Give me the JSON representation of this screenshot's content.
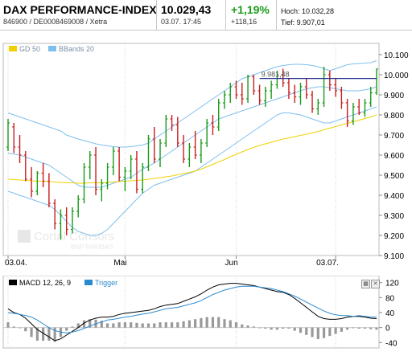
{
  "header": {
    "title": "DAX PERFORMANCE-INDEX",
    "subtitle": "846900 / DE0008469008 / Xetra",
    "last": "10.029,43",
    "datetime": "03.07. 17:45",
    "change_pct": "+1,19%",
    "change_abs": "+118,16",
    "high": "Hoch: 10.032,28",
    "low": "Tief: 9.907,01",
    "up_color": "#1a9a1a"
  },
  "watermark": {
    "line1": "Cortal Consors",
    "line2": "BNP PARIBAS"
  },
  "chart_data": [
    {
      "type": "ohlc",
      "legend": [
        {
          "label": "GD 50",
          "color": "#f2d000"
        },
        {
          "label": "BBands 20",
          "color": "#7fbfee"
        }
      ],
      "x_tick_labels": [
        "03.04.",
        "Mai",
        "Jun",
        "03.07."
      ],
      "x_tick_index": [
        0,
        20,
        39,
        56
      ],
      "y_tick_labels": [
        "10.100",
        "10.000",
        "9.900",
        "9.800",
        "9.700",
        "9.600",
        "9.500",
        "9.400",
        "9.300",
        "9.200",
        "9.100"
      ],
      "y_ticks": [
        10100,
        10000,
        9900,
        9800,
        9700,
        9600,
        9500,
        9400,
        9300,
        9200,
        9100
      ],
      "ylim": [
        9100,
        10100
      ],
      "reference_line": {
        "value": 9981.48,
        "label": "9.981,48",
        "color": "#1a2e8c"
      },
      "up_color": "#1a9a1a",
      "down_color": "#c81e1e",
      "candles": [
        [
          9640,
          9780,
          9620,
          9760
        ],
        [
          9740,
          9760,
          9610,
          9640
        ],
        [
          9640,
          9700,
          9560,
          9600
        ],
        [
          9600,
          9620,
          9470,
          9480
        ],
        [
          9480,
          9540,
          9390,
          9420
        ],
        [
          9420,
          9520,
          9400,
          9510
        ],
        [
          9510,
          9560,
          9440,
          9470
        ],
        [
          9470,
          9510,
          9340,
          9360
        ],
        [
          9360,
          9380,
          9230,
          9260
        ],
        [
          9260,
          9330,
          9180,
          9300
        ],
        [
          9300,
          9340,
          9200,
          9230
        ],
        [
          9230,
          9340,
          9210,
          9320
        ],
        [
          9320,
          9400,
          9290,
          9380
        ],
        [
          9380,
          9560,
          9360,
          9540
        ],
        [
          9540,
          9620,
          9480,
          9600
        ],
        [
          9600,
          9640,
          9400,
          9430
        ],
        [
          9430,
          9480,
          9370,
          9460
        ],
        [
          9460,
          9560,
          9430,
          9540
        ],
        [
          9540,
          9640,
          9500,
          9620
        ],
        [
          9620,
          9640,
          9470,
          9490
        ],
        [
          9490,
          9540,
          9420,
          9520
        ],
        [
          9520,
          9600,
          9480,
          9580
        ],
        [
          9580,
          9620,
          9410,
          9430
        ],
        [
          9430,
          9560,
          9410,
          9540
        ],
        [
          9540,
          9700,
          9520,
          9680
        ],
        [
          9680,
          9740,
          9560,
          9580
        ],
        [
          9580,
          9680,
          9540,
          9660
        ],
        [
          9660,
          9800,
          9640,
          9780
        ],
        [
          9780,
          9800,
          9720,
          9750
        ],
        [
          9750,
          9790,
          9640,
          9660
        ],
        [
          9660,
          9700,
          9560,
          9580
        ],
        [
          9580,
          9660,
          9540,
          9640
        ],
        [
          9640,
          9720,
          9580,
          9600
        ],
        [
          9600,
          9680,
          9560,
          9660
        ],
        [
          9660,
          9780,
          9640,
          9760
        ],
        [
          9760,
          9800,
          9700,
          9740
        ],
        [
          9740,
          9880,
          9720,
          9860
        ],
        [
          9860,
          9920,
          9830,
          9900
        ],
        [
          9900,
          9960,
          9860,
          9940
        ],
        [
          9940,
          9970,
          9880,
          9900
        ],
        [
          9900,
          9960,
          9850,
          9880
        ],
        [
          9880,
          10000,
          9860,
          9990
        ],
        [
          9990,
          10000,
          9900,
          9920
        ],
        [
          9920,
          9950,
          9850,
          9870
        ],
        [
          9870,
          9940,
          9840,
          9920
        ],
        [
          9920,
          9970,
          9880,
          9950
        ],
        [
          9950,
          10020,
          9930,
          10000
        ],
        [
          10000,
          10030,
          9940,
          9960
        ],
        [
          9960,
          9980,
          9880,
          9910
        ],
        [
          9910,
          9950,
          9860,
          9890
        ],
        [
          9890,
          9960,
          9850,
          9940
        ],
        [
          9940,
          9980,
          9880,
          9900
        ],
        [
          9900,
          9920,
          9810,
          9830
        ],
        [
          9830,
          9880,
          9800,
          9860
        ],
        [
          9860,
          10040,
          9840,
          10000
        ],
        [
          10000,
          10020,
          9920,
          9950
        ],
        [
          9950,
          9980,
          9890,
          9920
        ],
        [
          9920,
          9940,
          9830,
          9860
        ],
        [
          9860,
          9880,
          9740,
          9770
        ],
        [
          9770,
          9860,
          9750,
          9840
        ],
        [
          9840,
          9880,
          9800,
          9810
        ],
        [
          9810,
          9880,
          9790,
          9860
        ],
        [
          9860,
          9940,
          9840,
          9910
        ],
        [
          9910,
          10030,
          9900,
          10029
        ]
      ],
      "gd50": [
        9480,
        9478,
        9476,
        9474,
        9472,
        9470,
        9470,
        9468,
        9466,
        9464,
        9462,
        9462,
        9460,
        9460,
        9462,
        9462,
        9462,
        9464,
        9466,
        9468,
        9470,
        9472,
        9474,
        9476,
        9480,
        9484,
        9488,
        9492,
        9496,
        9502,
        9508,
        9514,
        9520,
        9530,
        9542,
        9554,
        9566,
        9578,
        9592,
        9604,
        9616,
        9628,
        9638,
        9648,
        9656,
        9664,
        9672,
        9680,
        9686,
        9692,
        9698,
        9704,
        9710,
        9718,
        9726,
        9734,
        9742,
        9750,
        9758,
        9766,
        9774,
        9782,
        9790,
        9800
      ],
      "bb_upper": [
        9810,
        9800,
        9790,
        9780,
        9770,
        9760,
        9750,
        9740,
        9730,
        9720,
        9700,
        9690,
        9680,
        9672,
        9664,
        9656,
        9650,
        9646,
        9642,
        9640,
        9640,
        9642,
        9646,
        9650,
        9660,
        9680,
        9700,
        9720,
        9740,
        9760,
        9780,
        9800,
        9820,
        9840,
        9860,
        9880,
        9900,
        9920,
        9940,
        9960,
        9980,
        9990,
        10000,
        10010,
        10020,
        10030,
        10040,
        10046,
        10050,
        10052,
        10052,
        10050,
        10046,
        10040,
        10030,
        10020,
        10030,
        10040,
        10050,
        10054,
        10056,
        10058,
        10060,
        10070
      ],
      "bb_lower": [
        9420,
        9410,
        9400,
        9390,
        9380,
        9370,
        9360,
        9350,
        9330,
        9300,
        9270,
        9240,
        9220,
        9210,
        9200,
        9200,
        9210,
        9230,
        9260,
        9290,
        9320,
        9350,
        9380,
        9410,
        9430,
        9450,
        9460,
        9470,
        9480,
        9490,
        9500,
        9510,
        9520,
        9540,
        9560,
        9580,
        9600,
        9620,
        9640,
        9660,
        9680,
        9700,
        9720,
        9740,
        9760,
        9780,
        9800,
        9810,
        9810,
        9805,
        9800,
        9790,
        9780,
        9770,
        9760,
        9760,
        9770,
        9780,
        9790,
        9800,
        9810,
        9820,
        9830,
        9840
      ],
      "bb_mid": [
        9610,
        9605,
        9600,
        9590,
        9580,
        9570,
        9560,
        9550,
        9530,
        9510,
        9490,
        9470,
        9450,
        9440,
        9440,
        9440,
        9440,
        9450,
        9460,
        9470,
        9480,
        9490,
        9510,
        9530,
        9545,
        9560,
        9580,
        9600,
        9620,
        9640,
        9660,
        9680,
        9700,
        9720,
        9740,
        9760,
        9780,
        9790,
        9800,
        9810,
        9820,
        9830,
        9840,
        9850,
        9860,
        9870,
        9880,
        9890,
        9900,
        9910,
        9920,
        9930,
        9935,
        9940,
        9940,
        9935,
        9930,
        9925,
        9920,
        9920,
        9920,
        9925,
        9930,
        9940
      ]
    },
    {
      "type": "line",
      "legend": [
        {
          "label": "MACD 12, 26, 9",
          "color": "#000000"
        },
        {
          "label": "Trigger",
          "color": "#2a8ad0"
        }
      ],
      "y_tick_labels": [
        "120",
        "80",
        "40",
        "0",
        "-40"
      ],
      "y_ticks": [
        120,
        80,
        40,
        0,
        -40
      ],
      "ylim": [
        -50,
        130
      ],
      "histogram_color": "#999999",
      "macd": [
        50,
        40,
        35,
        25,
        10,
        -5,
        -15,
        -25,
        -35,
        -30,
        -20,
        -10,
        0,
        12,
        20,
        25,
        28,
        28,
        30,
        35,
        38,
        40,
        42,
        44,
        46,
        50,
        56,
        60,
        62,
        64,
        70,
        76,
        82,
        90,
        100,
        108,
        114,
        116,
        118,
        118,
        116,
        114,
        112,
        108,
        104,
        100,
        96,
        94,
        88,
        78,
        66,
        54,
        42,
        30,
        24,
        22,
        22,
        24,
        28,
        30,
        30,
        28,
        25,
        24
      ],
      "trigger": [
        40,
        38,
        35,
        32,
        28,
        20,
        10,
        0,
        -8,
        -12,
        -14,
        -12,
        -8,
        -2,
        4,
        10,
        15,
        20,
        22,
        25,
        28,
        30,
        33,
        36,
        38,
        42,
        46,
        50,
        52,
        54,
        58,
        62,
        66,
        72,
        80,
        88,
        94,
        100,
        104,
        108,
        110,
        110,
        110,
        108,
        106,
        104,
        100,
        96,
        90,
        84,
        76,
        68,
        60,
        52,
        44,
        38,
        34,
        32,
        32,
        30,
        32,
        30,
        28,
        28
      ]
    }
  ]
}
